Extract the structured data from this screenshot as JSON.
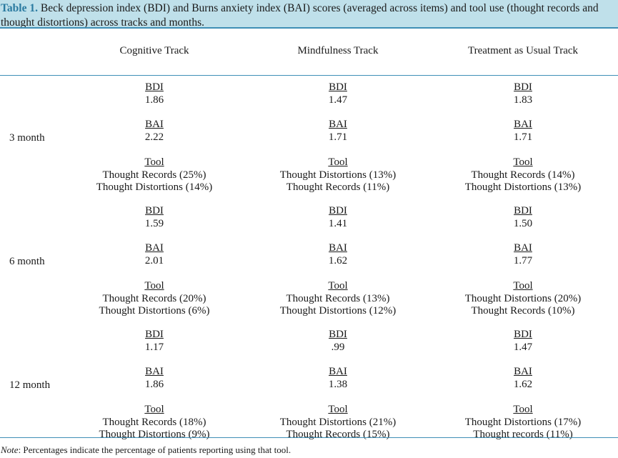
{
  "caption": {
    "label": "Table 1.",
    "text": "Beck depression index (BDI) and Burns anxiety index (BAI) scores (averaged across items) and tool use (thought records and thought distortions) across tracks and months."
  },
  "headers": [
    "Cognitive Track",
    "Mindfulness Track",
    "Treatment as Usual Track"
  ],
  "rows": [
    {
      "label": "3 month",
      "cells": [
        {
          "bdi_label": "BDI",
          "bdi": "1.86",
          "bai_label": "BAI",
          "bai": "2.22",
          "tool_label": "Tool",
          "tools": [
            "Thought Records (25%)",
            "Thought Distortions (14%)"
          ]
        },
        {
          "bdi_label": "BDI",
          "bdi": "1.47",
          "bai_label": "BAI",
          "bai": "1.71",
          "tool_label": "Tool",
          "tools": [
            "Thought Distortions (13%)",
            "Thought Records (11%)"
          ]
        },
        {
          "bdi_label": "BDI",
          "bdi": "1.83",
          "bai_label": "BAI",
          "bai": "1.71",
          "tool_label": "Tool",
          "tools": [
            "Thought Records (14%)",
            "Thought Distortions (13%)"
          ]
        }
      ]
    },
    {
      "label": "6 month",
      "cells": [
        {
          "bdi_label": "BDI",
          "bdi": "1.59",
          "bai_label": "BAI",
          "bai": "2.01",
          "tool_label": "Tool",
          "tools": [
            "Thought Records (20%)",
            "Thought Distortions (6%)"
          ]
        },
        {
          "bdi_label": "BDI",
          "bdi": "1.41",
          "bai_label": "BAI",
          "bai": "1.62",
          "tool_label": "Tool",
          "tools": [
            "Thought Records (13%)",
            "Thought Distortions (12%)"
          ]
        },
        {
          "bdi_label": "BDI",
          "bdi": "1.50",
          "bai_label": "BAI",
          "bai": "1.77",
          "tool_label": "Tool",
          "tools": [
            "Thought Distortions (20%)",
            "Thought Records (10%)"
          ]
        }
      ]
    },
    {
      "label": "12 month",
      "cells": [
        {
          "bdi_label": "BDI",
          "bdi": "1.17",
          "bai_label": "BAI",
          "bai": "1.86",
          "tool_label": "Tool",
          "tools": [
            "Thought Records (18%)",
            "Thought Distortions (9%)"
          ]
        },
        {
          "bdi_label": "BDI",
          "bdi": ".99",
          "bai_label": "BAI",
          "bai": "1.38",
          "tool_label": "Tool",
          "tools": [
            "Thought Distortions (21%)",
            "Thought Records (15%)"
          ]
        },
        {
          "bdi_label": "BDI",
          "bdi": "1.47",
          "bai_label": "BAI",
          "bai": "1.62",
          "tool_label": "Tool",
          "tools": [
            "Thought Distortions (17%)",
            "Thought records (11%)"
          ]
        }
      ]
    }
  ],
  "note": {
    "label": "Note",
    "text": ": Percentages indicate the percentage of patients reporting using that tool."
  }
}
